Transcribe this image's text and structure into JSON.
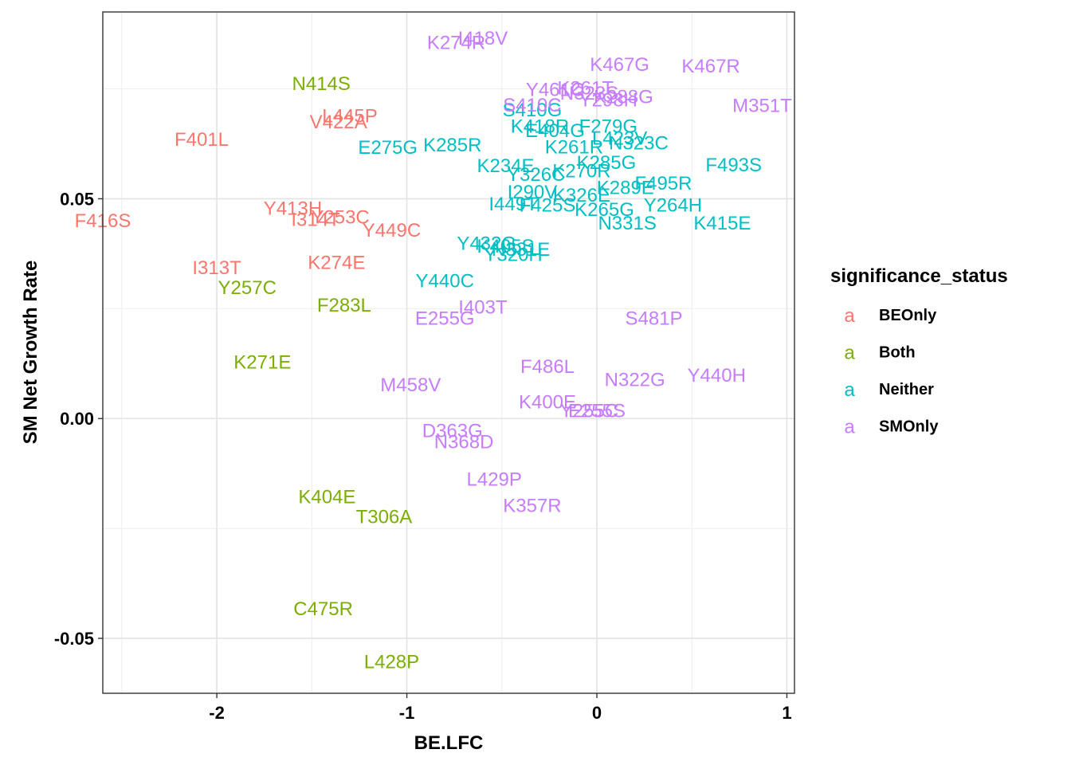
{
  "chart_data": {
    "type": "scatter",
    "xlabel": "BE.LFC",
    "ylabel": "SM Net Growth Rate",
    "xlim": [
      -2.6,
      1.04
    ],
    "ylim": [
      -0.0625,
      0.0925
    ],
    "x_ticks": [
      -2,
      -1,
      0,
      1
    ],
    "x_tick_labels": [
      "-2",
      "-1",
      "0",
      "1"
    ],
    "y_ticks": [
      -0.05,
      0.0,
      0.05
    ],
    "y_tick_labels": [
      "-0.05",
      "0.00",
      "0.05"
    ],
    "grid": true,
    "legend": {
      "title": "significance_status",
      "position": "right",
      "key_glyph": "a",
      "entries": [
        {
          "name": "BEOnly",
          "color": "#F8766D"
        },
        {
          "name": "Both",
          "color": "#7CAE00"
        },
        {
          "name": "Neither",
          "color": "#00BFC4"
        },
        {
          "name": "SMOnly",
          "color": "#C77CFF"
        }
      ]
    },
    "series": [
      {
        "name": "BEOnly",
        "color": "#F8766D",
        "points": [
          {
            "label": "F401L",
            "x": -2.08,
            "y": 0.0635
          },
          {
            "label": "V422A",
            "x": -1.36,
            "y": 0.0675
          },
          {
            "label": "L445P",
            "x": -1.3,
            "y": 0.0688
          },
          {
            "label": "Y413H",
            "x": -1.6,
            "y": 0.0478
          },
          {
            "label": "I314T",
            "x": -1.48,
            "y": 0.0453
          },
          {
            "label": "Y253C",
            "x": -1.35,
            "y": 0.0458
          },
          {
            "label": "Y449C",
            "x": -1.08,
            "y": 0.0428
          },
          {
            "label": "F416S",
            "x": -2.6,
            "y": 0.045
          },
          {
            "label": "I313T",
            "x": -2.0,
            "y": 0.0343
          },
          {
            "label": "K274E",
            "x": -1.37,
            "y": 0.0355
          }
        ]
      },
      {
        "name": "Both",
        "color": "#7CAE00",
        "points": [
          {
            "label": "N414S",
            "x": -1.45,
            "y": 0.0762
          },
          {
            "label": "Y257C",
            "x": -1.84,
            "y": 0.0298
          },
          {
            "label": "F283L",
            "x": -1.33,
            "y": 0.0258
          },
          {
            "label": "K271E",
            "x": -1.76,
            "y": 0.0128
          },
          {
            "label": "K404E",
            "x": -1.42,
            "y": -0.0178
          },
          {
            "label": "T306A",
            "x": -1.12,
            "y": -0.0223
          },
          {
            "label": "C475R",
            "x": -1.44,
            "y": -0.0433
          },
          {
            "label": "L428P",
            "x": -1.08,
            "y": -0.0553
          }
        ]
      },
      {
        "name": "Neither",
        "color": "#00BFC4",
        "points": [
          {
            "label": "E275G",
            "x": -1.1,
            "y": 0.0617
          },
          {
            "label": "K285R",
            "x": -0.76,
            "y": 0.0622
          },
          {
            "label": "K234E",
            "x": -0.48,
            "y": 0.0575
          },
          {
            "label": "F493S",
            "x": 0.72,
            "y": 0.0577
          },
          {
            "label": "S410G",
            "x": -0.34,
            "y": 0.0702
          },
          {
            "label": "F279G",
            "x": 0.06,
            "y": 0.0665
          },
          {
            "label": "K418R",
            "x": -0.3,
            "y": 0.0665
          },
          {
            "label": "E404G",
            "x": -0.22,
            "y": 0.0655
          },
          {
            "label": "L423V",
            "x": 0.12,
            "y": 0.0638
          },
          {
            "label": "K261R",
            "x": -0.12,
            "y": 0.0618
          },
          {
            "label": "N323C",
            "x": 0.22,
            "y": 0.0627
          },
          {
            "label": "Y326C",
            "x": -0.32,
            "y": 0.0555
          },
          {
            "label": "K285G",
            "x": 0.05,
            "y": 0.0582
          },
          {
            "label": "K270R",
            "x": -0.08,
            "y": 0.0563
          },
          {
            "label": "F495R",
            "x": 0.35,
            "y": 0.0535
          },
          {
            "label": "I290V",
            "x": -0.34,
            "y": 0.0515
          },
          {
            "label": "K289E",
            "x": 0.15,
            "y": 0.0525
          },
          {
            "label": "Y264H",
            "x": 0.4,
            "y": 0.0485
          },
          {
            "label": "I449T",
            "x": -0.44,
            "y": 0.0488
          },
          {
            "label": "F425S",
            "x": -0.26,
            "y": 0.0485
          },
          {
            "label": "K326E",
            "x": -0.08,
            "y": 0.0508
          },
          {
            "label": "K265G",
            "x": 0.04,
            "y": 0.0475
          },
          {
            "label": "N331S",
            "x": 0.16,
            "y": 0.0445
          },
          {
            "label": "K415E",
            "x": 0.66,
            "y": 0.0445
          },
          {
            "label": "Y440C",
            "x": -0.8,
            "y": 0.0313
          },
          {
            "label": "Y432G",
            "x": -0.58,
            "y": 0.0398
          },
          {
            "label": "K405S",
            "x": -0.48,
            "y": 0.0392
          },
          {
            "label": "N331E",
            "x": -0.4,
            "y": 0.0385
          },
          {
            "label": "Y320H",
            "x": -0.44,
            "y": 0.0373
          }
        ]
      },
      {
        "name": "SMOnly",
        "color": "#C77CFF",
        "points": [
          {
            "label": "K274R",
            "x": -0.74,
            "y": 0.0855
          },
          {
            "label": "I418V",
            "x": -0.6,
            "y": 0.0865
          },
          {
            "label": "K467G",
            "x": 0.12,
            "y": 0.0805
          },
          {
            "label": "K467R",
            "x": 0.6,
            "y": 0.0802
          },
          {
            "label": "Y461C",
            "x": -0.22,
            "y": 0.0748
          },
          {
            "label": "K261T",
            "x": -0.06,
            "y": 0.0752
          },
          {
            "label": "N323S",
            "x": -0.04,
            "y": 0.074
          },
          {
            "label": "K288G",
            "x": 0.14,
            "y": 0.0732
          },
          {
            "label": "Y298H",
            "x": 0.06,
            "y": 0.0725
          },
          {
            "label": "S410C",
            "x": -0.34,
            "y": 0.0713
          },
          {
            "label": "M351T",
            "x": 0.87,
            "y": 0.0712
          },
          {
            "label": "I403T",
            "x": -0.6,
            "y": 0.0253
          },
          {
            "label": "E255G",
            "x": -0.8,
            "y": 0.0228
          },
          {
            "label": "S481P",
            "x": 0.3,
            "y": 0.0228
          },
          {
            "label": "F486L",
            "x": -0.26,
            "y": 0.0118
          },
          {
            "label": "N322G",
            "x": 0.2,
            "y": 0.0088
          },
          {
            "label": "Y440H",
            "x": 0.63,
            "y": 0.0098
          },
          {
            "label": "M458V",
            "x": -0.98,
            "y": 0.0077
          },
          {
            "label": "K400E",
            "x": -0.26,
            "y": 0.0038
          },
          {
            "label": "Y255C",
            "x": -0.04,
            "y": 0.0018
          },
          {
            "label": "E255S",
            "x": 0.0,
            "y": 0.0018
          },
          {
            "label": "D363G",
            "x": -0.76,
            "y": -0.0028
          },
          {
            "label": "N368D",
            "x": -0.7,
            "y": -0.0053
          },
          {
            "label": "L429P",
            "x": -0.54,
            "y": -0.0138
          },
          {
            "label": "K357R",
            "x": -0.34,
            "y": -0.0198
          }
        ]
      }
    ]
  }
}
